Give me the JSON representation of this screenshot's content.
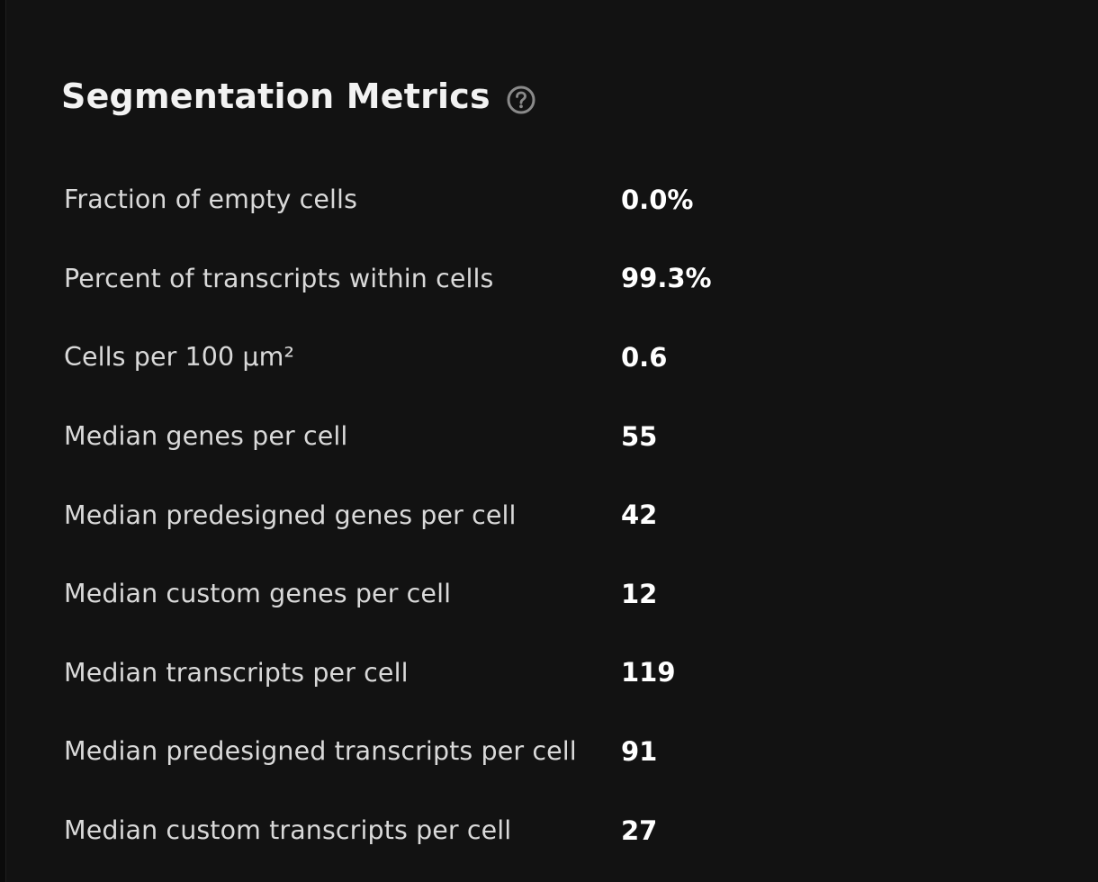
{
  "section": {
    "title": "Segmentation Metrics",
    "help_icon": "question-circle-icon"
  },
  "metrics": [
    {
      "label": "Fraction of empty cells",
      "value": "0.0%"
    },
    {
      "label": "Percent of transcripts within cells",
      "value": "99.3%"
    },
    {
      "label": "Cells per 100 µm²",
      "value": "0.6"
    },
    {
      "label": "Median genes per cell",
      "value": "55"
    },
    {
      "label": "Median predesigned genes per cell",
      "value": "42"
    },
    {
      "label": "Median custom genes per cell",
      "value": "12"
    },
    {
      "label": "Median transcripts per cell",
      "value": "119"
    },
    {
      "label": "Median predesigned transcripts per cell",
      "value": "91"
    },
    {
      "label": "Median custom transcripts per cell",
      "value": "27"
    }
  ],
  "colors": {
    "background": "#121212",
    "title": "#f2f2f2",
    "label": "#d9d9d9",
    "value": "#ffffff",
    "icon": "#8a8a8a"
  }
}
